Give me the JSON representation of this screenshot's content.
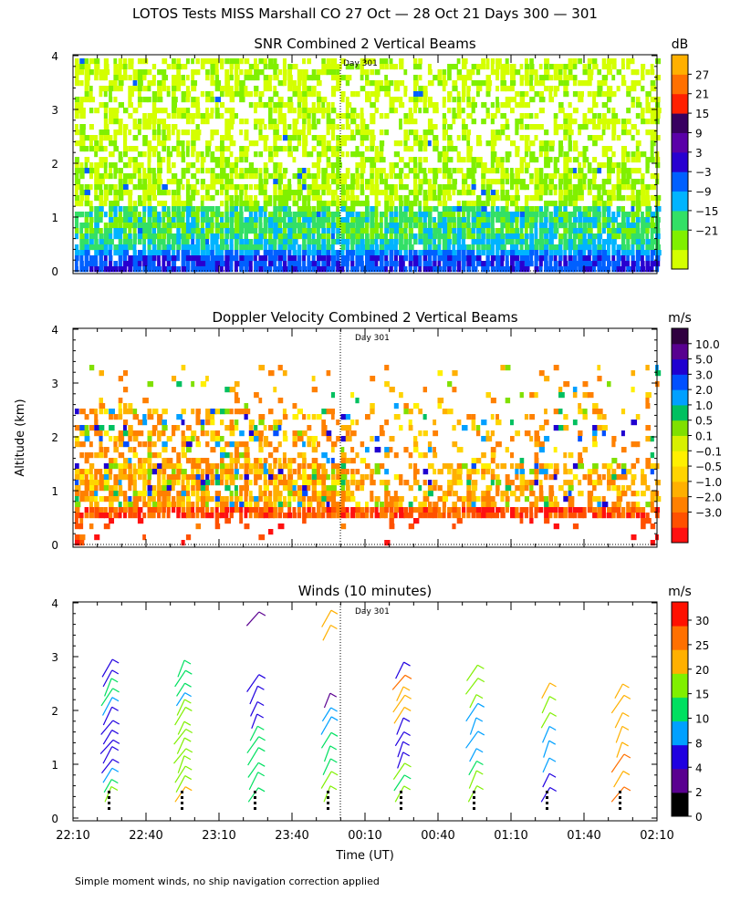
{
  "title": "LOTOS Tests MISS Marshall CO  27 Oct — 28 Oct 21 Days 300 — 301",
  "footnote": "Simple moment winds, no ship navigation correction applied",
  "chart_data": [
    {
      "type": "heatmap",
      "title": "SNR Combined 2 Vertical Beams",
      "ylabel": "",
      "yticks": [
        "0",
        "1",
        "2",
        "3",
        "4"
      ],
      "ylim": [
        0,
        4
      ],
      "day_marker": "Day 301",
      "colorbar_unit": "dB",
      "colorbar_ticks": [
        "27",
        "21",
        "15",
        "9",
        "3",
        "−3",
        "−9",
        "−15",
        "−21"
      ],
      "colors": [
        "#d4ff00",
        "#80f000",
        "#33e066",
        "#00b4ff",
        "#0060ff",
        "#2800d0",
        "#5a00a8",
        "#380060",
        "#ff2000",
        "#ff7000",
        "#ffb000"
      ]
    },
    {
      "type": "heatmap",
      "title": "Doppler Velocity Combined 2 Vertical Beams",
      "ylabel": "Altitude (km)",
      "yticks": [
        "0",
        "1",
        "2",
        "3",
        "4"
      ],
      "ylim": [
        0,
        4
      ],
      "day_marker": "Day 301",
      "colorbar_unit": "m/s",
      "colorbar_ticks": [
        "10.0",
        "5.0",
        "3.0",
        "2.0",
        "1.0",
        "0.5",
        "0.1",
        "−0.1",
        "−0.5",
        "−1.0",
        "−2.0",
        "−3.0"
      ],
      "colors": [
        "#ff1010",
        "#ff5000",
        "#ff8000",
        "#ffb000",
        "#ffd400",
        "#fff000",
        "#d8f000",
        "#80e000",
        "#00c060",
        "#00a0ff",
        "#0050ff",
        "#2000d0",
        "#580090",
        "#300040"
      ]
    },
    {
      "type": "scatter",
      "title": "Winds (10 minutes)",
      "ylabel": "",
      "xlabel": "Time (UT)",
      "xticks": [
        "22:10",
        "22:40",
        "23:10",
        "23:40",
        "00:10",
        "00:40",
        "01:10",
        "01:40",
        "02:10"
      ],
      "yticks": [
        "0",
        "1",
        "2",
        "3",
        "4"
      ],
      "ylim": [
        0,
        4
      ],
      "day_marker": "Day 301",
      "colorbar_unit": "m/s",
      "colorbar_ticks": [
        "30",
        "25",
        "20",
        "15",
        "10",
        "8",
        "4",
        "2",
        "0"
      ],
      "colors": [
        "#000000",
        "#5a0090",
        "#2000e0",
        "#00a0ff",
        "#00e060",
        "#80f000",
        "#ffb000",
        "#ff7000",
        "#ff1000"
      ],
      "wind_profiles": [
        {
          "time": "22:25",
          "speeds": [
            15,
            13,
            8,
            6,
            6,
            6,
            6,
            4,
            6,
            8,
            10,
            10,
            4,
            4
          ]
        },
        {
          "time": "22:55",
          "speeds": [
            22,
            18,
            15,
            15,
            15,
            15,
            15,
            15,
            15,
            15,
            8,
            10,
            10,
            12
          ]
        },
        {
          "time": "23:25",
          "speeds": [
            10,
            10,
            10,
            10,
            10,
            10,
            4,
            6,
            6,
            6,
            2
          ]
        },
        {
          "time": "23:55",
          "speeds": [
            15,
            15,
            10,
            10,
            10,
            8,
            8,
            2,
            22,
            20
          ]
        },
        {
          "time": "00:25",
          "speeds": [
            15,
            12,
            15,
            6,
            6,
            6,
            6,
            20,
            20,
            22,
            25,
            4
          ]
        },
        {
          "time": "00:55",
          "speeds": [
            18,
            18,
            12,
            8,
            8,
            8,
            8,
            15,
            15,
            15
          ]
        },
        {
          "time": "01:25",
          "speeds": [
            6,
            6,
            8,
            8,
            8,
            18,
            18,
            20
          ]
        },
        {
          "time": "01:55",
          "speeds": [
            25,
            22,
            25,
            22,
            20,
            20,
            22,
            22
          ]
        }
      ]
    }
  ]
}
